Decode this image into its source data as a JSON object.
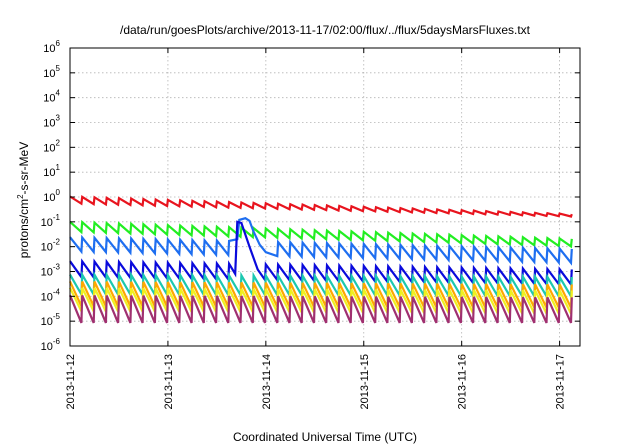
{
  "chart_data": {
    "type": "line",
    "title": "/data/run/goesPlots/archive/2013-11-17/02:00/flux/../flux/5daysMarsFluxes.txt",
    "xlabel": "Coordinated Universal Time (UTC)",
    "ylabel_parts": {
      "pre": "protons/cm",
      "sup": "2",
      "post": "-s-sr-MeV"
    },
    "scale": {
      "y": "log",
      "x": "time"
    },
    "grid": true,
    "xlim": [
      "2013-11-12",
      "2013-11-17 05:00"
    ],
    "ylim": [
      1e-06,
      1000000.0
    ],
    "x_ticks": [
      "2013-11-12",
      "2013-11-13",
      "2013-11-14",
      "2013-11-15",
      "2013-11-16",
      "2013-11-17"
    ],
    "y_ticks": [
      {
        "value": 1e-06,
        "base": "10",
        "exp": "-6"
      },
      {
        "value": 1e-05,
        "base": "10",
        "exp": "-5"
      },
      {
        "value": 0.0001,
        "base": "10",
        "exp": "-4"
      },
      {
        "value": 0.001,
        "base": "10",
        "exp": "-3"
      },
      {
        "value": 0.01,
        "base": "10",
        "exp": "-2"
      },
      {
        "value": 0.1,
        "base": "10",
        "exp": "-1"
      },
      {
        "value": 1.0,
        "base": "10",
        "exp": "0"
      },
      {
        "value": 10.0,
        "base": "10",
        "exp": "1"
      },
      {
        "value": 100.0,
        "base": "10",
        "exp": "2"
      },
      {
        "value": 1000.0,
        "base": "10",
        "exp": "3"
      },
      {
        "value": 10000.0,
        "base": "10",
        "exp": "4"
      },
      {
        "value": 100000.0,
        "base": "10",
        "exp": "5"
      },
      {
        "value": 1000000.0,
        "base": "10",
        "exp": "6"
      }
    ],
    "cycle_hours": 3,
    "start": "2013-11-12 00:00",
    "series": [
      {
        "color": "#e8141e",
        "top_start": 1.05,
        "top_end": 0.2,
        "bottom_start": 0.55,
        "bottom_end": 0.16
      },
      {
        "color": "#22ee22",
        "top_start": 0.1,
        "top_end": 0.02,
        "bottom_start": 0.04,
        "bottom_end": 0.01
      },
      {
        "color": "#1e6ef0",
        "top_start": 0.024,
        "top_end": 0.008,
        "bottom_start": 0.0065,
        "bottom_end": 0.0022,
        "event": [
          {
            "t": "2013-11-13 17:00",
            "v": 0.02
          },
          {
            "t": "2013-11-13 17:30",
            "v": 0.12
          },
          {
            "t": "2013-11-13 19:00",
            "v": 0.14
          },
          {
            "t": "2013-11-13 20:00",
            "v": 0.11
          },
          {
            "t": "2013-11-13 21:00",
            "v": 0.04
          },
          {
            "t": "2013-11-13 22:30",
            "v": 0.012
          },
          {
            "t": "2013-11-14 00:00",
            "v": 0.006
          }
        ]
      },
      {
        "color": "#0a0adc",
        "top_start": 0.0026,
        "top_end": 0.0012,
        "bottom_start": 0.0006,
        "bottom_end": 0.0003,
        "event": [
          {
            "t": "2013-11-13 16:30",
            "v": 0.0008
          },
          {
            "t": "2013-11-13 17:00",
            "v": 0.1
          },
          {
            "t": "2013-11-13 18:00",
            "v": 0.09
          },
          {
            "t": "2013-11-13 20:00",
            "v": 0.01
          },
          {
            "t": "2013-11-13 22:00",
            "v": 0.0012
          }
        ]
      },
      {
        "color": "#1cc8b0",
        "top_start": 0.00075,
        "top_end": 0.0006,
        "bottom_start": 0.00012,
        "bottom_end": 0.0001
      },
      {
        "color": "#ffa800",
        "top_start": 0.0004,
        "top_end": 0.0003,
        "bottom_start": 4e-05,
        "bottom_end": 3.5e-05
      },
      {
        "color": "#f0f020",
        "top_start": 0.00022,
        "top_end": 0.00017,
        "bottom_start": 2.5e-05,
        "bottom_end": 2e-05
      },
      {
        "color": "#a03070",
        "top_start": 0.00011,
        "top_end": 9e-05,
        "bottom_start": 8.5e-06,
        "bottom_end": 8.5e-06
      }
    ]
  }
}
